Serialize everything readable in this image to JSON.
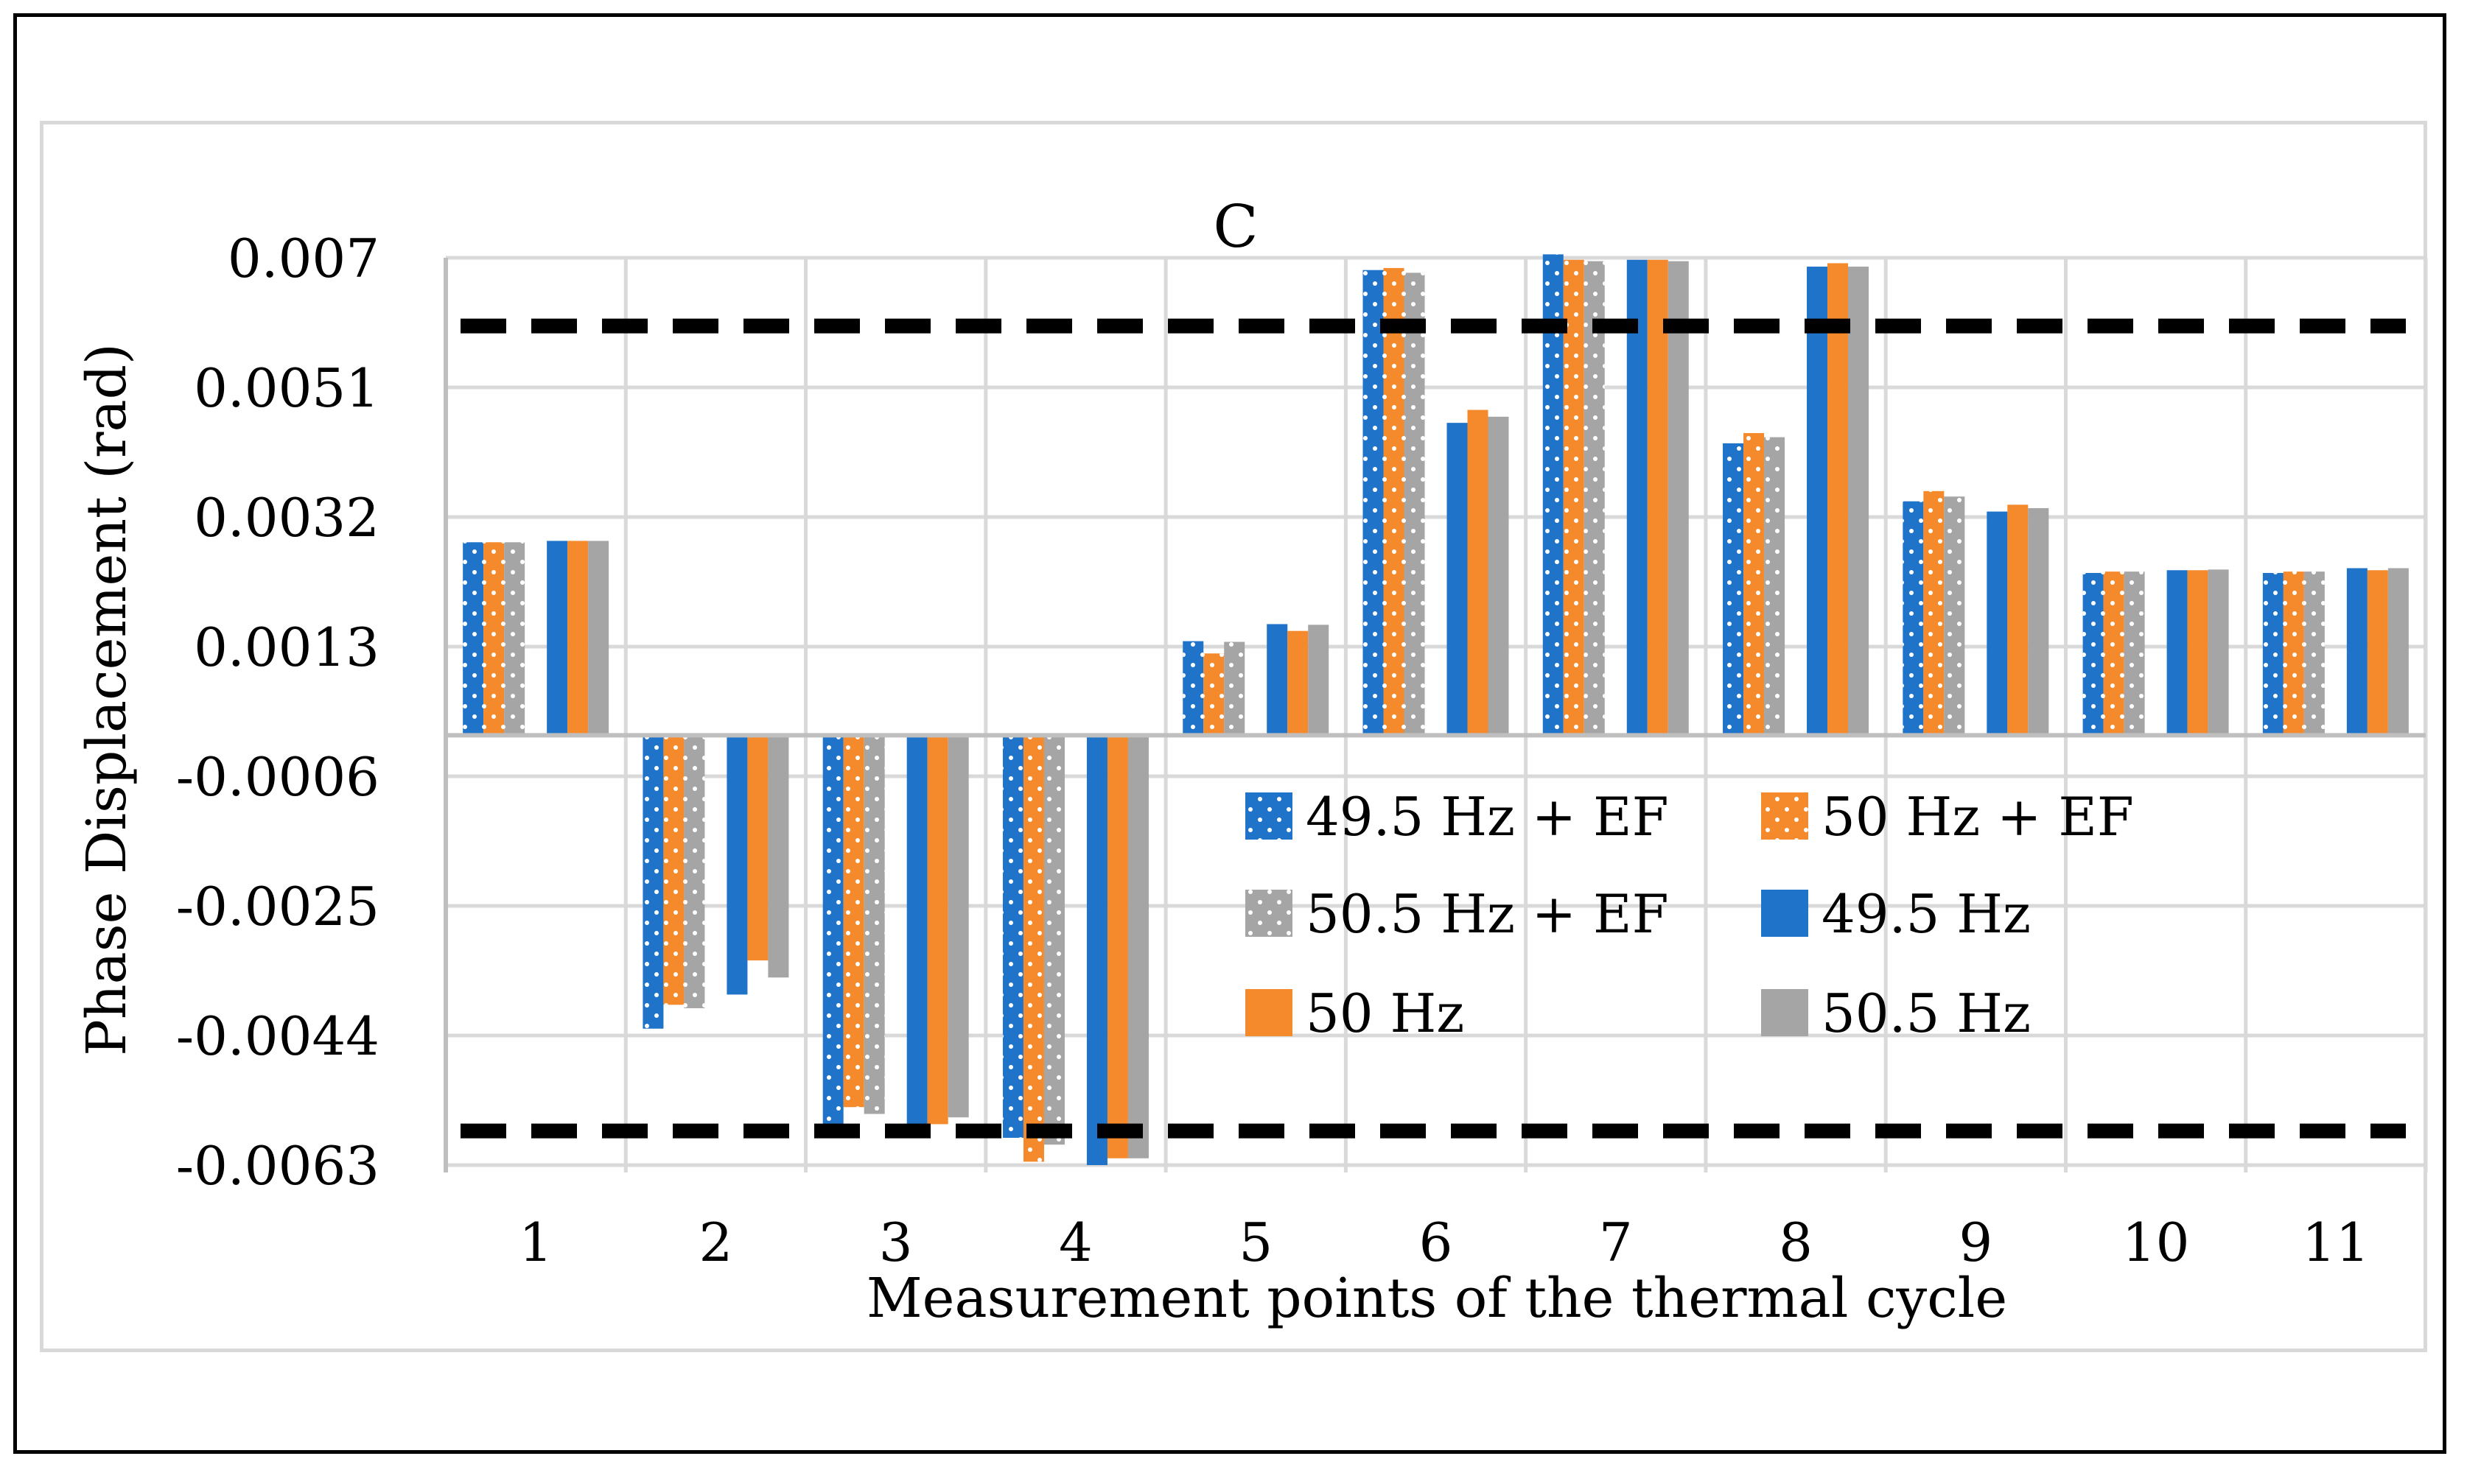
{
  "chart_data": {
    "type": "bar",
    "title": "C",
    "xlabel": "Measurement points of the thermal cycle",
    "ylabel": "Phase Displacement (rad)",
    "ylim": [
      -0.0063,
      0.007
    ],
    "yticks": [
      "0.007",
      "0.0051",
      "0.0032",
      "0.0013",
      "-0.0006",
      "-0.0025",
      "-0.0044",
      "-0.0063"
    ],
    "ytick_values": [
      0.007,
      0.0051,
      0.0032,
      0.0013,
      -0.0006,
      -0.0025,
      -0.0044,
      -0.0063
    ],
    "categories": [
      "1",
      "2",
      "3",
      "4",
      "5",
      "6",
      "7",
      "8",
      "9",
      "10",
      "11"
    ],
    "series": [
      {
        "name": "49.5 Hz + EF",
        "color": "#1f73c8",
        "pattern": "dotted",
        "values": [
          0.00283,
          -0.0043,
          -0.0057,
          -0.0059,
          0.00138,
          0.00682,
          0.00705,
          0.00428,
          0.00343,
          0.00238,
          0.00238
        ]
      },
      {
        "name": "50 Hz + EF",
        "color": "#f58a2c",
        "pattern": "dotted",
        "values": [
          0.00283,
          -0.00395,
          -0.00545,
          -0.00625,
          0.0012,
          0.00685,
          0.00697,
          0.00443,
          0.00358,
          0.0024,
          0.0024
        ]
      },
      {
        "name": "50.5 Hz + EF",
        "color": "#a5a5a5",
        "pattern": "dotted",
        "values": [
          0.00283,
          -0.004,
          -0.00555,
          -0.006,
          0.00137,
          0.00678,
          0.00695,
          0.00437,
          0.0035,
          0.0024,
          0.0024
        ]
      },
      {
        "name": "49.5 Hz",
        "color": "#1f73c8",
        "pattern": "solid",
        "values": [
          0.00285,
          -0.0038,
          -0.0057,
          -0.0063,
          0.00163,
          0.00458,
          0.00697,
          0.00687,
          0.00328,
          0.00242,
          0.00245
        ]
      },
      {
        "name": "50 Hz",
        "color": "#f58a2c",
        "pattern": "solid",
        "values": [
          0.00285,
          -0.0033,
          -0.0057,
          -0.0062,
          0.00153,
          0.00477,
          0.00697,
          0.00692,
          0.00338,
          0.00242,
          0.00242
        ]
      },
      {
        "name": "50.5 Hz",
        "color": "#a5a5a5",
        "pattern": "solid",
        "values": [
          0.00285,
          -0.00355,
          -0.0056,
          -0.0062,
          0.00162,
          0.00467,
          0.00695,
          0.00687,
          0.00333,
          0.00243,
          0.00245
        ]
      }
    ],
    "limits": [
      0.006,
      -0.0058
    ],
    "grid": true,
    "legend_position": "center-right"
  }
}
